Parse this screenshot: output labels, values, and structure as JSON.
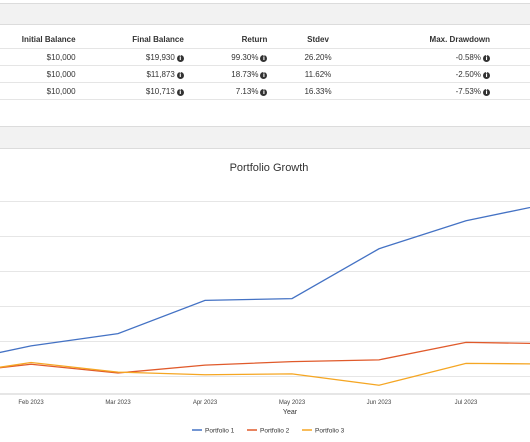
{
  "table": {
    "headers": {
      "initial_balance": "Initial Balance",
      "final_balance": "Final Balance",
      "return": "Return",
      "stdev": "Stdev",
      "max_drawdown": "Max. Drawdown"
    },
    "rows": [
      {
        "initial_balance": "$10,000",
        "final_balance": "$19,930",
        "return": "99.30%",
        "stdev": "26.20%",
        "max_drawdown": "-0.58%"
      },
      {
        "initial_balance": "$10,000",
        "final_balance": "$11,873",
        "return": "18.73%",
        "stdev": "11.62%",
        "max_drawdown": "-2.50%"
      },
      {
        "initial_balance": "$10,000",
        "final_balance": "$10,713",
        "return": "7.13%",
        "stdev": "16.33%",
        "max_drawdown": "-7.53%"
      }
    ],
    "info_icon": "info-circle-icon"
  },
  "chart_data": {
    "type": "line",
    "title": "Portfolio Growth",
    "xlabel": "Year",
    "ylabel": "",
    "categories": [
      "Feb 2023",
      "Mar 2023",
      "Apr 2023",
      "May 2023",
      "Jun 2023",
      "Jul 2023"
    ],
    "x": [
      "Jan 2023",
      "Feb 2023",
      "Mar 2023",
      "Apr 2023",
      "May 2023",
      "Jun 2023",
      "Jul 2023",
      "Aug 2023"
    ],
    "ylim": [
      9000,
      21000
    ],
    "grid": true,
    "legend": "bottom",
    "series": [
      {
        "name": "Portfolio 1",
        "color": "#4472c4",
        "values": [
          10700,
          11750,
          12450,
          14350,
          14450,
          17300,
          18900,
          19930
        ]
      },
      {
        "name": "Portfolio 2",
        "color": "#e05a2b",
        "values": [
          10150,
          10700,
          10200,
          10650,
          10850,
          10950,
          11950,
          11873
        ]
      },
      {
        "name": "Portfolio 3",
        "color": "#f5a623",
        "values": [
          10050,
          10800,
          10250,
          10100,
          10150,
          9500,
          10750,
          10713
        ]
      }
    ]
  }
}
